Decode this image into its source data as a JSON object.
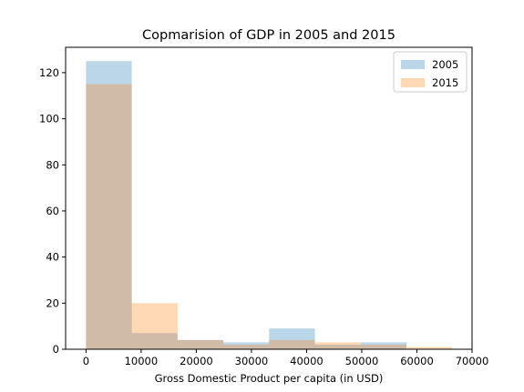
{
  "chart_data": {
    "type": "bar",
    "title": "Copmarision of GDP in 2005 and 2015",
    "xlabel": "Gross Domestic Product per capita (in USD)",
    "ylabel": "",
    "xlim": [
      -3700,
      70000
    ],
    "ylim": [
      0,
      131
    ],
    "xticks": [
      0,
      10000,
      20000,
      30000,
      40000,
      50000,
      60000,
      70000
    ],
    "yticks": [
      0,
      20,
      40,
      60,
      80,
      100,
      120
    ],
    "grid": false,
    "legend_position": "top-right",
    "series": [
      {
        "name": "2005",
        "color": "#1f77b4",
        "opacity": 0.3,
        "bins": [
          {
            "x0": 0,
            "x1": 8300,
            "count": 125
          },
          {
            "x0": 8300,
            "x1": 16600,
            "count": 7
          },
          {
            "x0": 16600,
            "x1": 24900,
            "count": 4
          },
          {
            "x0": 24900,
            "x1": 33200,
            "count": 3
          },
          {
            "x0": 33200,
            "x1": 41500,
            "count": 9
          },
          {
            "x0": 41500,
            "x1": 49800,
            "count": 2
          },
          {
            "x0": 49800,
            "x1": 58100,
            "count": 3
          }
        ]
      },
      {
        "name": "2015",
        "color": "#ff7f0e",
        "opacity": 0.3,
        "bins": [
          {
            "x0": 0,
            "x1": 8300,
            "count": 115
          },
          {
            "x0": 8300,
            "x1": 16600,
            "count": 20
          },
          {
            "x0": 16600,
            "x1": 24900,
            "count": 4
          },
          {
            "x0": 24900,
            "x1": 33200,
            "count": 2
          },
          {
            "x0": 33200,
            "x1": 41500,
            "count": 4
          },
          {
            "x0": 41500,
            "x1": 49800,
            "count": 3
          },
          {
            "x0": 49800,
            "x1": 58100,
            "count": 2
          },
          {
            "x0": 58100,
            "x1": 66400,
            "count": 1
          }
        ]
      }
    ]
  }
}
